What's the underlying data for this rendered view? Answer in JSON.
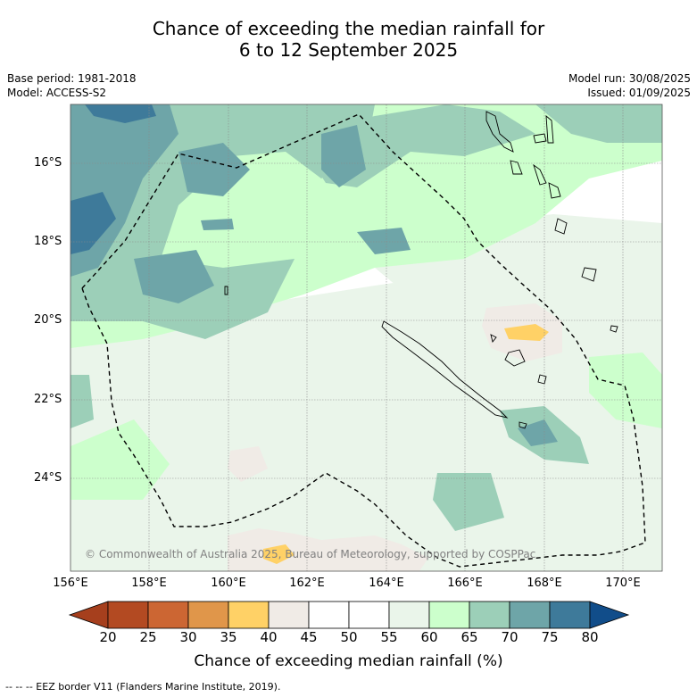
{
  "title": {
    "line1": "Chance of exceeding the median rainfall for",
    "line2": "6 to 12 September 2025"
  },
  "meta_left": {
    "base_period": "Base period: 1981-2018",
    "model": "Model: ACCESS-S2"
  },
  "meta_right": {
    "model_run": "Model run: 30/08/2025",
    "issued": "Issued: 01/09/2025"
  },
  "map": {
    "lat_labels": [
      "16°S",
      "18°S",
      "20°S",
      "22°S",
      "24°S"
    ],
    "lon_labels": [
      "156°E",
      "158°E",
      "160°E",
      "162°E",
      "164°E",
      "166°E",
      "168°E",
      "170°E"
    ],
    "copyright": "© Commonwealth of Australia 2025, Bureau of Meteorology, supported by COSPPac",
    "eez_style": "dashed black line",
    "land_style": "black outline"
  },
  "colorbar": {
    "ticks": [
      "20",
      "25",
      "30",
      "35",
      "40",
      "45",
      "50",
      "55",
      "60",
      "65",
      "70",
      "75",
      "80"
    ],
    "colors": [
      "#a63f1d",
      "#b34a22",
      "#cc6633",
      "#e0964a",
      "#ffd166",
      "#f0ebe6",
      "#ffffff",
      "#ffffff",
      "#eaf5ea",
      "#ccffcc",
      "#9ccfb8",
      "#6ea5a8",
      "#3e7a9a",
      "#114d8a"
    ],
    "label": "Chance of exceeding median rainfall (%)"
  },
  "footnote": "--  --  -- EEZ border V11 (Flanders Marine Institute, 2019)."
}
